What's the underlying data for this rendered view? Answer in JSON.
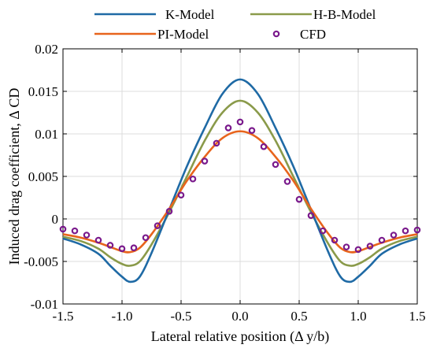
{
  "chart_data": {
    "type": "line",
    "title": "",
    "xlabel": "Lateral relative position (Δ y/b)",
    "ylabel": "Induced drag coefficient, Δ CD",
    "xlim": [
      -1.5,
      1.5
    ],
    "ylim": [
      -0.01,
      0.02
    ],
    "xticks": [
      -1.5,
      -1.0,
      -0.5,
      0.0,
      0.5,
      1.0,
      1.5
    ],
    "xtick_labels": [
      "-1.5",
      "-1.0",
      "-0.5",
      "0.0",
      "0.5",
      "1.0",
      "1.5"
    ],
    "yticks": [
      -0.01,
      -0.005,
      0,
      0.005,
      0.01,
      0.015,
      0.02
    ],
    "ytick_labels": [
      "-0.01",
      "-0.005",
      "0",
      "0.005",
      "0.01",
      "0.015",
      "0.02"
    ],
    "grid": true,
    "legend_position": "top",
    "series": [
      {
        "name": "K-Model",
        "style": "line",
        "color": "#1f6aa5",
        "x": [
          -1.5,
          -1.35,
          -1.2,
          -1.1,
          -1.0,
          -0.93,
          -0.85,
          -0.75,
          -0.6,
          -0.45,
          -0.3,
          -0.15,
          0.0,
          0.15,
          0.3,
          0.45,
          0.6,
          0.75,
          0.85,
          0.93,
          1.0,
          1.1,
          1.2,
          1.35,
          1.5
        ],
        "y": [
          -0.0023,
          -0.003,
          -0.0041,
          -0.0055,
          -0.0068,
          -0.0074,
          -0.0068,
          -0.004,
          0.0011,
          0.0062,
          0.0107,
          0.0147,
          0.0164,
          0.0147,
          0.0107,
          0.0062,
          0.0011,
          -0.004,
          -0.0068,
          -0.0074,
          -0.0068,
          -0.0055,
          -0.0041,
          -0.003,
          -0.0023
        ]
      },
      {
        "name": "H-B-Model",
        "style": "line",
        "color": "#8a9a4a",
        "x": [
          -1.5,
          -1.35,
          -1.2,
          -1.1,
          -1.0,
          -0.93,
          -0.85,
          -0.75,
          -0.6,
          -0.45,
          -0.3,
          -0.15,
          0.0,
          0.15,
          0.3,
          0.45,
          0.6,
          0.75,
          0.85,
          0.93,
          1.0,
          1.1,
          1.2,
          1.35,
          1.5
        ],
        "y": [
          -0.0021,
          -0.0026,
          -0.0035,
          -0.0045,
          -0.0053,
          -0.0055,
          -0.005,
          -0.003,
          0.0008,
          0.005,
          0.0092,
          0.0125,
          0.0139,
          0.0125,
          0.0092,
          0.005,
          0.0008,
          -0.003,
          -0.005,
          -0.0055,
          -0.0053,
          -0.0045,
          -0.0035,
          -0.0026,
          -0.0021
        ]
      },
      {
        "name": "PI-Model",
        "style": "line",
        "color": "#e8641c",
        "x": [
          -1.5,
          -1.35,
          -1.2,
          -1.1,
          -1.0,
          -0.93,
          -0.85,
          -0.75,
          -0.6,
          -0.45,
          -0.3,
          -0.15,
          0.0,
          0.15,
          0.3,
          0.45,
          0.6,
          0.75,
          0.85,
          0.93,
          1.0,
          1.1,
          1.2,
          1.35,
          1.5
        ],
        "y": [
          -0.0018,
          -0.0022,
          -0.0028,
          -0.0033,
          -0.0038,
          -0.0039,
          -0.0034,
          -0.0018,
          0.0012,
          0.0045,
          0.0073,
          0.0095,
          0.0103,
          0.0095,
          0.0073,
          0.0045,
          0.0012,
          -0.0018,
          -0.0034,
          -0.0039,
          -0.0038,
          -0.0033,
          -0.0028,
          -0.0022,
          -0.0018
        ]
      },
      {
        "name": "CFD",
        "style": "markers",
        "color": "#7a1a8c",
        "x": [
          -1.5,
          -1.4,
          -1.3,
          -1.2,
          -1.1,
          -1.0,
          -0.9,
          -0.8,
          -0.7,
          -0.6,
          -0.5,
          -0.4,
          -0.3,
          -0.2,
          -0.1,
          0.0,
          0.1,
          0.2,
          0.3,
          0.4,
          0.5,
          0.6,
          0.7,
          0.8,
          0.9,
          1.0,
          1.1,
          1.2,
          1.3,
          1.4,
          1.5
        ],
        "y": [
          -0.0012,
          -0.0014,
          -0.0019,
          -0.0025,
          -0.0031,
          -0.0035,
          -0.0034,
          -0.0022,
          -0.0008,
          0.0009,
          0.0028,
          0.0047,
          0.0068,
          0.0089,
          0.0107,
          0.0114,
          0.0104,
          0.0085,
          0.0064,
          0.0044,
          0.0023,
          0.0004,
          -0.0014,
          -0.0025,
          -0.0033,
          -0.0036,
          -0.0032,
          -0.0025,
          -0.0019,
          -0.0014,
          -0.0013
        ]
      }
    ]
  }
}
